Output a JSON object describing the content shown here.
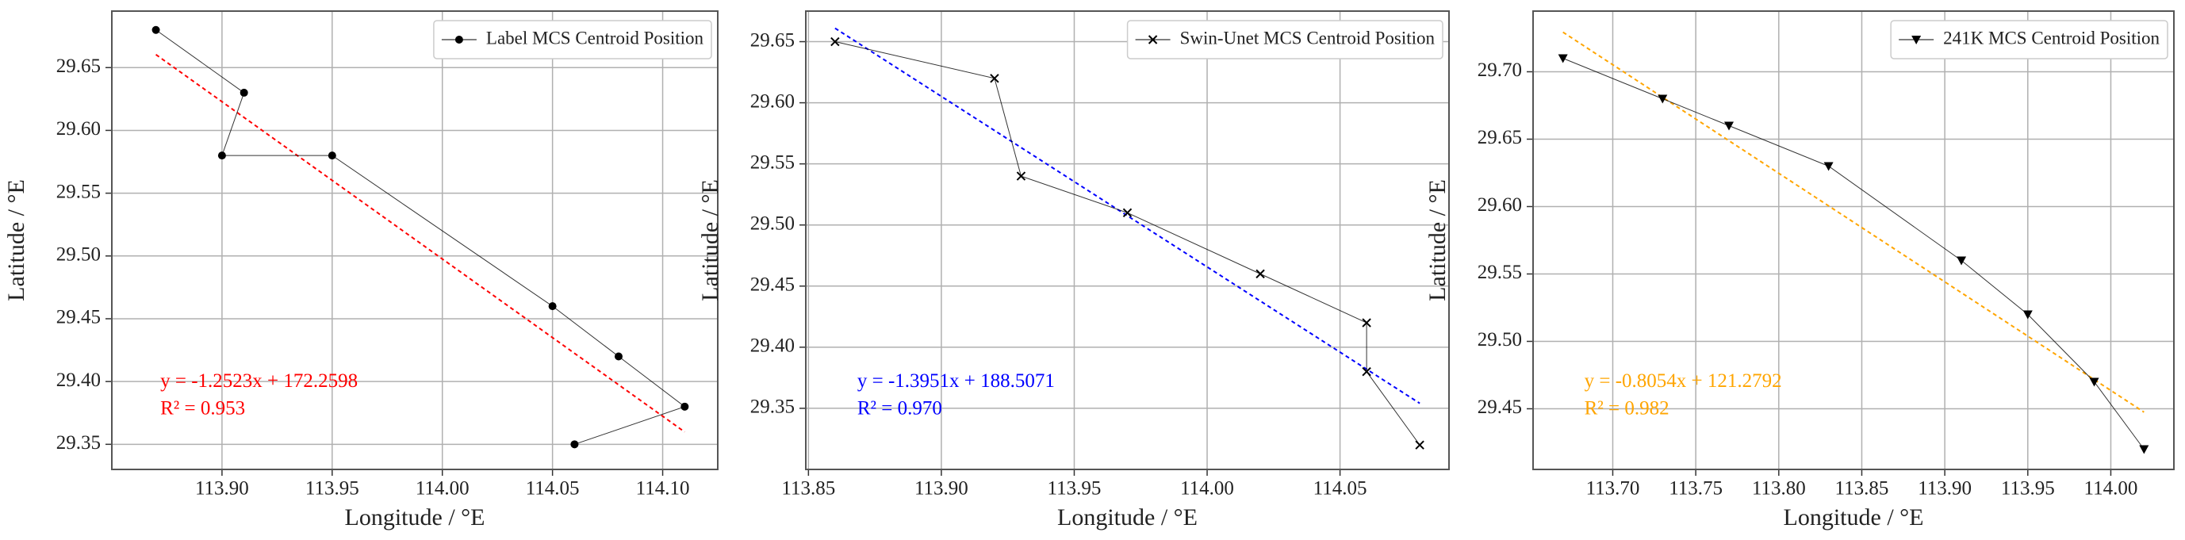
{
  "chart_data": [
    {
      "type": "line",
      "xlabel": "Longitude / °E",
      "ylabel": "Latitude / °E",
      "grid": true,
      "legend": "upper right",
      "x": [
        113.87,
        113.91,
        113.9,
        113.95,
        114.05,
        114.08,
        114.11,
        114.06
      ],
      "series": [
        {
          "name": "Label MCS Centroid Position",
          "color": "#000000",
          "marker": "circle",
          "values": [
            29.68,
            29.63,
            29.58,
            29.58,
            29.46,
            29.42,
            29.38,
            29.35
          ]
        }
      ],
      "fit": {
        "slope": -1.2523,
        "intercept": 172.2598,
        "r2": 0.953,
        "color": "#ff0000",
        "equation_label": "y = -1.2523x + 172.2598",
        "r2_label": "R² = 0.953"
      },
      "xlim": [
        113.85,
        114.125
      ],
      "ylim": [
        29.33,
        29.695
      ],
      "xticks": [
        {
          "value": 113.9,
          "label": "113.90"
        },
        113.95,
        {
          "value": 114,
          "label": "114.00"
        },
        114.05,
        {
          "value": 114.1,
          "label": "114.10"
        }
      ],
      "yticks": [
        29.35,
        {
          "value": 29.4,
          "label": "29.40"
        },
        29.45,
        {
          "value": 29.5,
          "label": "29.50"
        },
        29.55,
        {
          "value": 29.6,
          "label": "29.60"
        },
        29.65
      ]
    },
    {
      "type": "line",
      "xlabel": "Longitude / °E",
      "ylabel": "Latitude / °E",
      "grid": true,
      "legend": "upper right",
      "x": [
        113.86,
        113.92,
        113.93,
        113.97,
        114.02,
        114.06,
        114.06,
        114.08
      ],
      "series": [
        {
          "name": "Swin-Unet MCS Centroid Position",
          "color": "#000000",
          "marker": "x",
          "values": [
            29.65,
            29.62,
            29.54,
            29.51,
            29.46,
            29.42,
            29.38,
            29.32
          ]
        }
      ],
      "fit": {
        "slope": -1.3951,
        "intercept": 188.5071,
        "r2": 0.97,
        "color": "#0000ff",
        "equation_label": "y = -1.3951x + 188.5071",
        "r2_label": "R² = 0.970"
      },
      "xlim": [
        113.849,
        114.091
      ],
      "ylim": [
        29.3,
        29.675
      ],
      "xticks": [
        113.85,
        {
          "value": 113.9,
          "label": "113.90"
        },
        113.95,
        {
          "value": 114,
          "label": "114.00"
        },
        114.05
      ],
      "yticks": [
        29.35,
        {
          "value": 29.4,
          "label": "29.40"
        },
        29.45,
        {
          "value": 29.5,
          "label": "29.50"
        },
        29.55,
        {
          "value": 29.6,
          "label": "29.60"
        },
        29.65
      ]
    },
    {
      "type": "line",
      "xlabel": "Longitude / °E",
      "ylabel": "Latitude / °E",
      "grid": true,
      "legend": "upper right",
      "x": [
        113.67,
        113.73,
        113.77,
        113.83,
        113.91,
        113.95,
        113.99,
        114.02
      ],
      "series": [
        {
          "name": "241K MCS Centroid Position",
          "color": "#000000",
          "marker": "triangle-down",
          "values": [
            29.71,
            29.68,
            29.66,
            29.63,
            29.56,
            29.52,
            29.47,
            29.42
          ]
        }
      ],
      "fit": {
        "slope": -0.8054,
        "intercept": 121.2792,
        "r2": 0.982,
        "color": "#ffa500",
        "equation_label": "y = -0.8054x + 121.2792",
        "r2_label": "R² = 0.982"
      },
      "xlim": [
        113.652,
        114.038
      ],
      "ylim": [
        29.405,
        29.745
      ],
      "xticks": [
        {
          "value": 113.7,
          "label": "113.70"
        },
        113.75,
        {
          "value": 113.8,
          "label": "113.80"
        },
        113.85,
        {
          "value": 113.9,
          "label": "113.90"
        },
        113.95,
        {
          "value": 114,
          "label": "114.00"
        }
      ],
      "yticks": [
        29.45,
        {
          "value": 29.5,
          "label": "29.50"
        },
        29.55,
        {
          "value": 29.6,
          "label": "29.60"
        },
        29.65,
        {
          "value": 29.7,
          "label": "29.70"
        }
      ]
    }
  ]
}
